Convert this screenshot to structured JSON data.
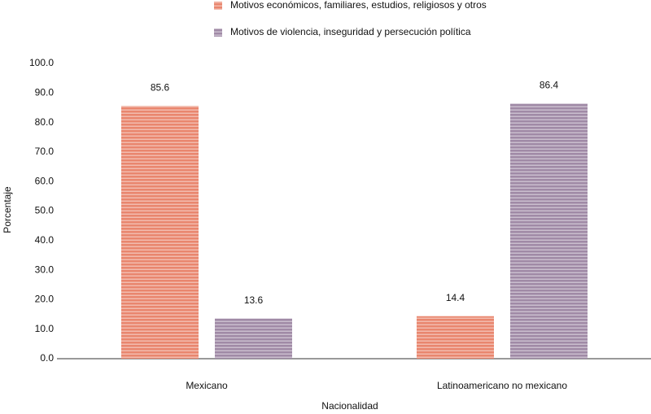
{
  "chart_data": {
    "type": "bar",
    "categories": [
      "Mexicano",
      "Latinoamericano no mexicano"
    ],
    "series": [
      {
        "name": "Motivos económicos, familiares, estudios, religiosos y otros",
        "color": "#e9866e",
        "values": [
          85.6,
          14.4
        ]
      },
      {
        "name": "Motivos de violencia, inseguridad y persecución política",
        "color": "#a08aa6",
        "values": [
          13.6,
          86.4
        ]
      }
    ],
    "x_label": "Nacionalidad",
    "y_label": "Porcentaje",
    "ylim": [
      0,
      100
    ],
    "yticks": [
      {
        "value": 0,
        "label": "0.0"
      },
      {
        "value": 10,
        "label": "10.0"
      },
      {
        "value": 20,
        "label": "20.0"
      },
      {
        "value": 30,
        "label": "30.0"
      },
      {
        "value": 40,
        "label": "40.0"
      },
      {
        "value": 50,
        "label": "50.0"
      },
      {
        "value": 60,
        "label": "60.0"
      },
      {
        "value": 70,
        "label": "70.0"
      },
      {
        "value": 80,
        "label": "80.0"
      },
      {
        "value": 90,
        "label": "90.0"
      },
      {
        "value": 100,
        "label": "100.0"
      }
    ],
    "legend": "top",
    "grid": false
  }
}
